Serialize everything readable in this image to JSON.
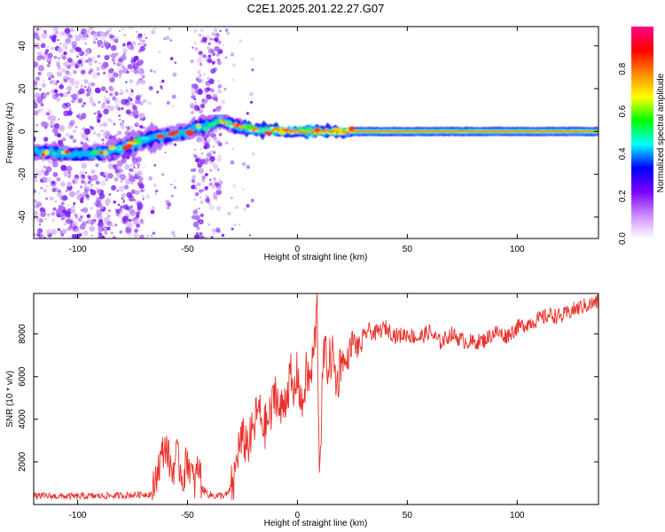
{
  "title": "C2E1.2025.201.22.27.G07",
  "chart_data": [
    {
      "type": "heatmap",
      "xlabel": "Height of straight line (km)",
      "ylabel": "Frequency (Hz)",
      "xlim": [
        -120,
        137
      ],
      "ylim": [
        -50,
        49
      ],
      "xticks": [
        -100,
        -50,
        0,
        50,
        100
      ],
      "yticks": [
        -40,
        -20,
        0,
        20,
        40
      ],
      "ridge": [
        {
          "x": -120,
          "y": -9
        },
        {
          "x": -110,
          "y": -10
        },
        {
          "x": -100,
          "y": -11
        },
        {
          "x": -90,
          "y": -10
        },
        {
          "x": -80,
          "y": -8
        },
        {
          "x": -70,
          "y": -4
        },
        {
          "x": -60,
          "y": -2
        },
        {
          "x": -50,
          "y": 0
        },
        {
          "x": -45,
          "y": 2
        },
        {
          "x": -40,
          "y": 3
        },
        {
          "x": -35,
          "y": 5
        },
        {
          "x": -30,
          "y": 3
        },
        {
          "x": -20,
          "y": 1
        },
        {
          "x": -10,
          "y": 0.5
        },
        {
          "x": 0,
          "y": 0
        },
        {
          "x": 10,
          "y": 0
        },
        {
          "x": 25,
          "y": 0
        },
        {
          "x": 137,
          "y": 0
        }
      ],
      "grid": false
    },
    {
      "type": "colorbar",
      "label": "Normalized spectral amplitude",
      "range": [
        0,
        1
      ],
      "ticks": [
        "0.0",
        "0.2",
        "0.4",
        "0.6",
        "0.8"
      ],
      "colors": [
        "#ffffff",
        "#cc88ff",
        "#7a00ff",
        "#0000ff",
        "#00ffff",
        "#00ff00",
        "#ffff00",
        "#ff8800",
        "#ff0000",
        "#ff0088"
      ]
    },
    {
      "type": "line",
      "xlabel": "Height of straight line (km)",
      "ylabel": "SNR (10 * v/v)",
      "xlim": [
        -120,
        137
      ],
      "ylim": [
        0,
        9900
      ],
      "xticks": [
        -100,
        -50,
        0,
        50,
        100
      ],
      "yticks": [
        2000,
        4000,
        6000,
        8000
      ],
      "color": "#e8302a",
      "series": [
        {
          "x": [
            -120,
            -100,
            -80,
            -66,
            -64,
            -62,
            -60,
            -57,
            -55,
            -52,
            -50,
            -47,
            -45,
            -43,
            -40,
            -37,
            -35,
            -32,
            -29,
            -27,
            -25,
            -22,
            -20,
            -18,
            -15,
            -12,
            -10,
            -8,
            -5,
            -3,
            -2,
            0,
            2,
            4,
            6,
            8,
            9,
            10,
            12,
            14,
            16,
            18,
            20,
            22,
            25,
            28,
            32,
            35,
            40,
            45,
            50,
            55,
            60,
            65,
            70,
            75,
            80,
            85,
            90,
            95,
            100,
            105,
            110,
            115,
            120,
            125,
            130,
            137
          ],
          "y": [
            400,
            380,
            420,
            500,
            1500,
            2200,
            2800,
            1500,
            2300,
            1200,
            2200,
            900,
            1800,
            700,
            450,
            400,
            420,
            450,
            1000,
            2600,
            3000,
            2900,
            3500,
            4500,
            3600,
            4200,
            5500,
            4200,
            5200,
            6000,
            4800,
            6300,
            4400,
            6100,
            5800,
            7800,
            9200,
            1600,
            7200,
            6500,
            7100,
            5500,
            7000,
            6500,
            7700,
            7300,
            8200,
            8000,
            8300,
            7900,
            8000,
            7800,
            8100,
            7600,
            8000,
            7700,
            7600,
            7700,
            8100,
            7900,
            8300,
            8500,
            8700,
            8900,
            8800,
            9100,
            9300,
            9500
          ]
        }
      ]
    }
  ]
}
